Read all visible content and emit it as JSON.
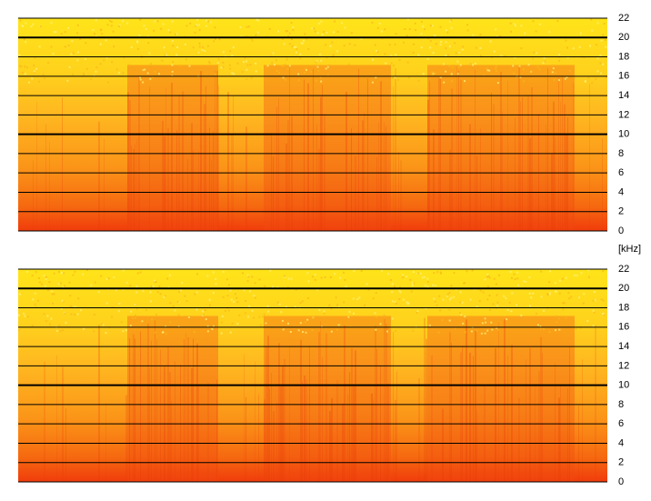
{
  "chart_data": [
    {
      "type": "spectrogram",
      "ylim": [
        0,
        22
      ],
      "yticks": [
        0,
        2,
        4,
        6,
        8,
        10,
        12,
        14,
        16,
        18,
        20,
        22
      ],
      "y_label": "[kHz]",
      "grid": true,
      "grid_color": "#000000"
    },
    {
      "type": "spectrogram",
      "ylim": [
        0,
        22
      ],
      "yticks": [
        0,
        2,
        4,
        6,
        8,
        10,
        12,
        14,
        16,
        18,
        20,
        22
      ],
      "grid": true,
      "grid_color": "#000000"
    }
  ]
}
